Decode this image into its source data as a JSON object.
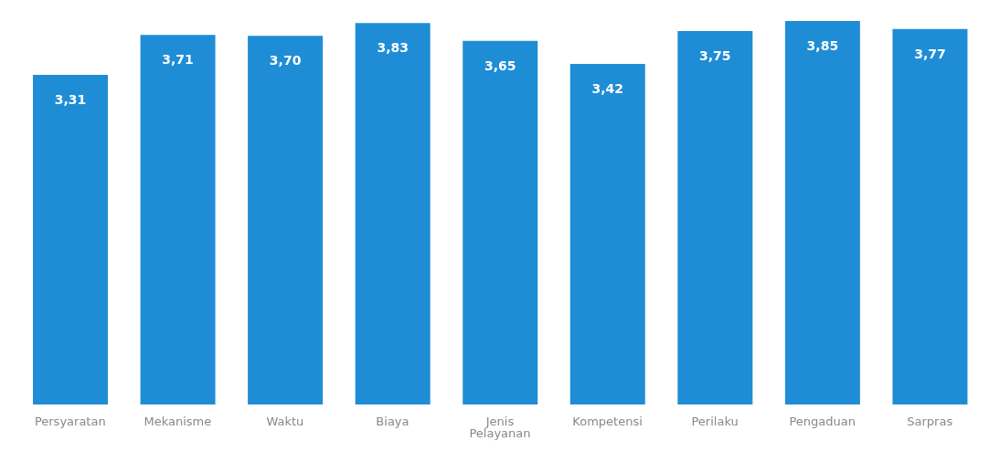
{
  "chart_data": {
    "type": "bar",
    "categories": [
      "Persyaratan",
      "Mekanisme",
      "Waktu",
      "Biaya",
      "Jenis Pelayanan",
      "Kompetensi",
      "Perilaku",
      "Pengaduan",
      "Sarpras"
    ],
    "values": [
      3.31,
      3.71,
      3.7,
      3.83,
      3.65,
      3.42,
      3.75,
      3.85,
      3.77
    ],
    "value_labels": [
      "3,31",
      "3,71",
      "3,70",
      "3,83",
      "3,65",
      "3,42",
      "3,75",
      "3,85",
      "3,77"
    ],
    "color": "#1f8dd6",
    "grid": false,
    "legend": false
  }
}
